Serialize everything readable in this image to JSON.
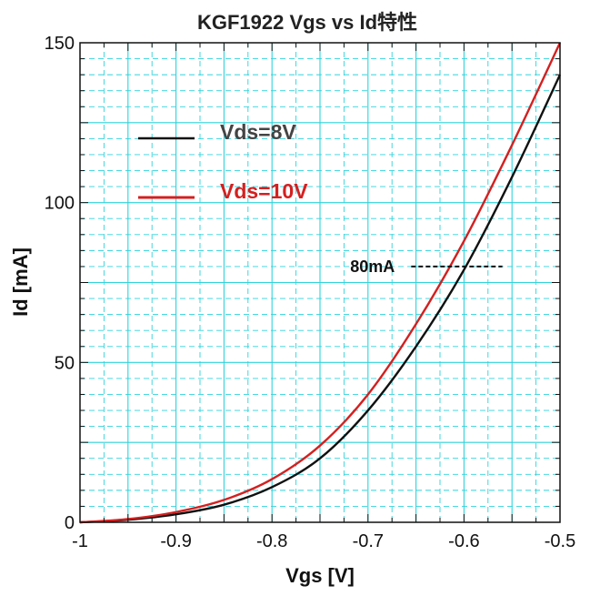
{
  "chart_data": {
    "type": "line",
    "title": "KGF1922 Vgs vs Id特性",
    "xlabel": "Vgs [V]",
    "ylabel": "Id [mA]",
    "xlim": [
      -1,
      -0.5
    ],
    "ylim": [
      0,
      150
    ],
    "xticks": [
      -1,
      -0.9,
      -0.8,
      -0.7,
      -0.6,
      -0.5
    ],
    "xtick_labels": [
      "-1",
      "-0.9",
      "-0.8",
      "-0.7",
      "-0.6",
      "-0.5"
    ],
    "yticks": [
      0,
      50,
      100,
      150
    ],
    "ytick_labels": [
      "0",
      "50",
      "100",
      "150"
    ],
    "grid": true,
    "grid_color": "#2ed3dc",
    "background": "#ffffff",
    "legend_position": "upper-left",
    "series": [
      {
        "name": "Vds=8V",
        "color": "#111111",
        "legend_color": "#444444",
        "x": [
          -1.0,
          -0.95,
          -0.9,
          -0.85,
          -0.8,
          -0.75,
          -0.7,
          -0.65,
          -0.6,
          -0.55,
          -0.5
        ],
        "y": [
          0,
          0.8,
          2.5,
          5.5,
          11,
          20,
          35,
          55,
          79,
          108,
          140
        ]
      },
      {
        "name": "Vds=10V",
        "color": "#d42020",
        "legend_color": "#d42020",
        "x": [
          -1.0,
          -0.95,
          -0.9,
          -0.85,
          -0.8,
          -0.75,
          -0.7,
          -0.65,
          -0.6,
          -0.55,
          -0.5
        ],
        "y": [
          0,
          1.0,
          3.2,
          7,
          13.5,
          24,
          40,
          62,
          88,
          118,
          150
        ]
      }
    ],
    "annotations": [
      {
        "text": "80mA",
        "y": 80,
        "x_start": -0.655,
        "x_end": -0.56,
        "line_style": "dashed"
      }
    ]
  }
}
